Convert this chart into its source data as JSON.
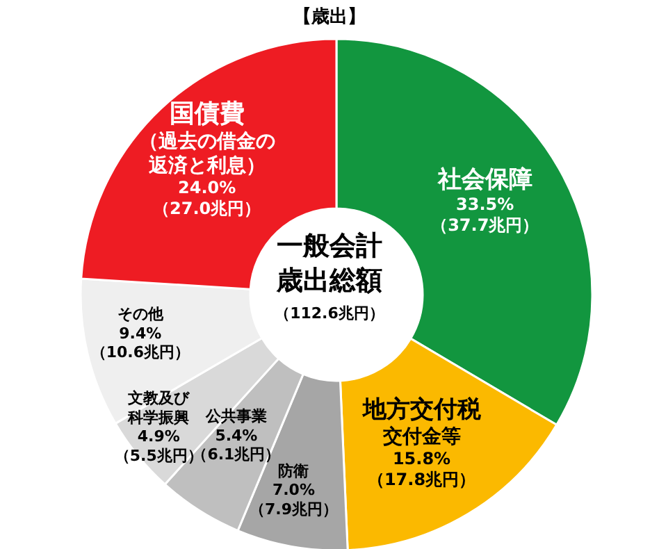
{
  "chart_data": {
    "type": "donut",
    "title": "【歳出】",
    "categories": [
      "社会保障",
      "地方交付税交付金等",
      "防衛",
      "公共事業",
      "文教及び科学振興",
      "その他",
      "国債費（過去の借金の返済と利息）"
    ],
    "values": [
      33.5,
      15.8,
      7.0,
      5.4,
      4.9,
      9.4,
      24.0
    ],
    "colors": [
      "#12963f",
      "#fbb900",
      "#a6a6a6",
      "#bfbfbf",
      "#d9d9d9",
      "#efefef",
      "#ee1c23"
    ],
    "value_labels": [
      "33.5%\n（37.7兆円）",
      "15.8%\n（17.8兆円）",
      "7.0%\n（7.9兆円）",
      "5.4%\n（6.1兆円）",
      "4.9%\n（5.5兆円）",
      "9.4%\n（10.6兆円）",
      "24.0%\n（27.0兆円）"
    ],
    "annotations": [
      "一般会計歳出総額",
      "（112.6兆円）"
    ]
  }
}
